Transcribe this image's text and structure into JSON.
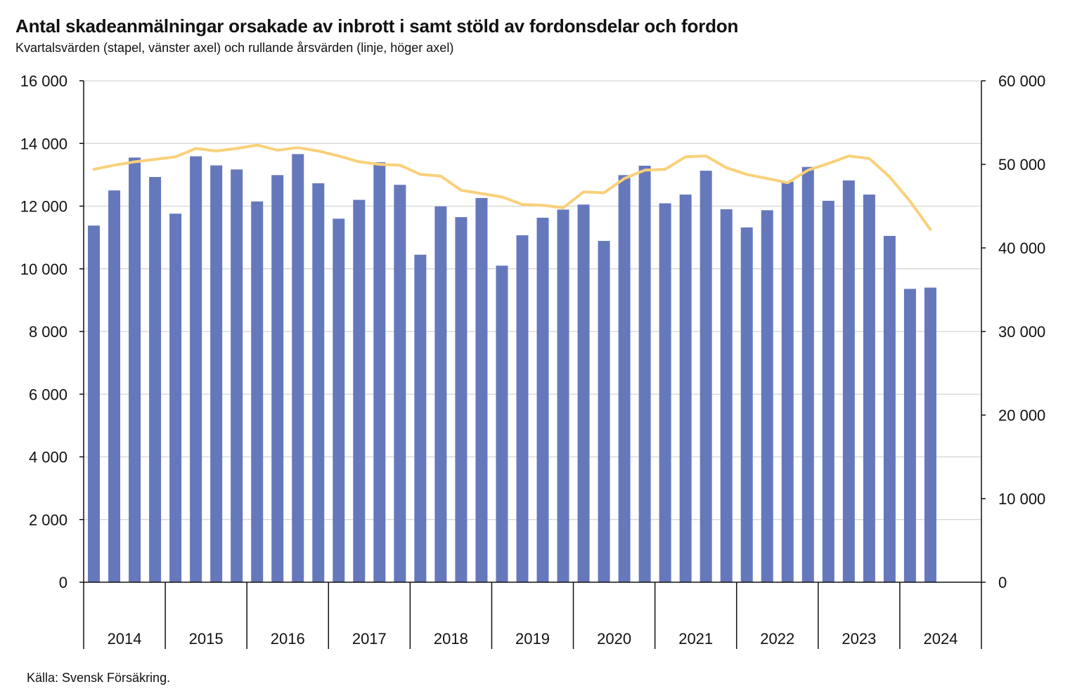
{
  "title": "Antal skadeanmälningar orsakade av inbrott i samt stöld av fordonsdelar och fordon",
  "subtitle": "Kvartalsvärden (stapel, vänster axel) och rullande årsvärden (linje, höger axel)",
  "source": "Källa: Svensk Försäkring.",
  "chart_data": {
    "type": "bar",
    "years": [
      "2014",
      "2015",
      "2016",
      "2017",
      "2018",
      "2019",
      "2020",
      "2021",
      "2022",
      "2023",
      "2024"
    ],
    "quarters_per_year": 4,
    "y_left": {
      "min": 0,
      "max": 16000,
      "ticks": [
        0,
        2000,
        4000,
        6000,
        8000,
        10000,
        12000,
        14000,
        16000
      ],
      "tick_labels": [
        "0",
        "2 000",
        "4 000",
        "6 000",
        "8 000",
        "10 000",
        "12 000",
        "14 000",
        "16 000"
      ]
    },
    "y_right": {
      "min": 0,
      "max": 60000,
      "ticks": [
        0,
        10000,
        20000,
        30000,
        40000,
        50000,
        60000
      ],
      "tick_labels": [
        "0",
        "10 000",
        "20 000",
        "30 000",
        "40 000",
        "50 000",
        "60 000"
      ]
    },
    "grid": true,
    "series": [
      {
        "type": "bar",
        "axis": "left",
        "color": "#6678bc",
        "values": [
          11380,
          12500,
          13550,
          12930,
          11760,
          13590,
          13300,
          13170,
          12150,
          12990,
          13660,
          12730,
          11600,
          12200,
          13400,
          12680,
          10450,
          11990,
          11650,
          12260,
          10100,
          11070,
          11630,
          11890,
          12050,
          10890,
          12990,
          13290,
          12090,
          12370,
          13130,
          11900,
          11320,
          11870,
          12780,
          13250,
          12170,
          12820,
          12370,
          11050,
          9360,
          9400
        ]
      },
      {
        "type": "line",
        "axis": "right",
        "color": "#fad07a",
        "start_index": 0,
        "values": [
          49400,
          49900,
          50300,
          50600,
          50900,
          51900,
          51600,
          51900,
          52300,
          51700,
          52000,
          51600,
          51000,
          50300,
          50000,
          49900,
          48800,
          48600,
          46900,
          46500,
          46100,
          45200,
          45100,
          44800,
          46700,
          46600,
          48300,
          49300,
          49400,
          50900,
          51000,
          49600,
          48800,
          48300,
          47800,
          49300,
          50100,
          51000,
          50700,
          48500,
          45600,
          42200
        ]
      }
    ]
  }
}
